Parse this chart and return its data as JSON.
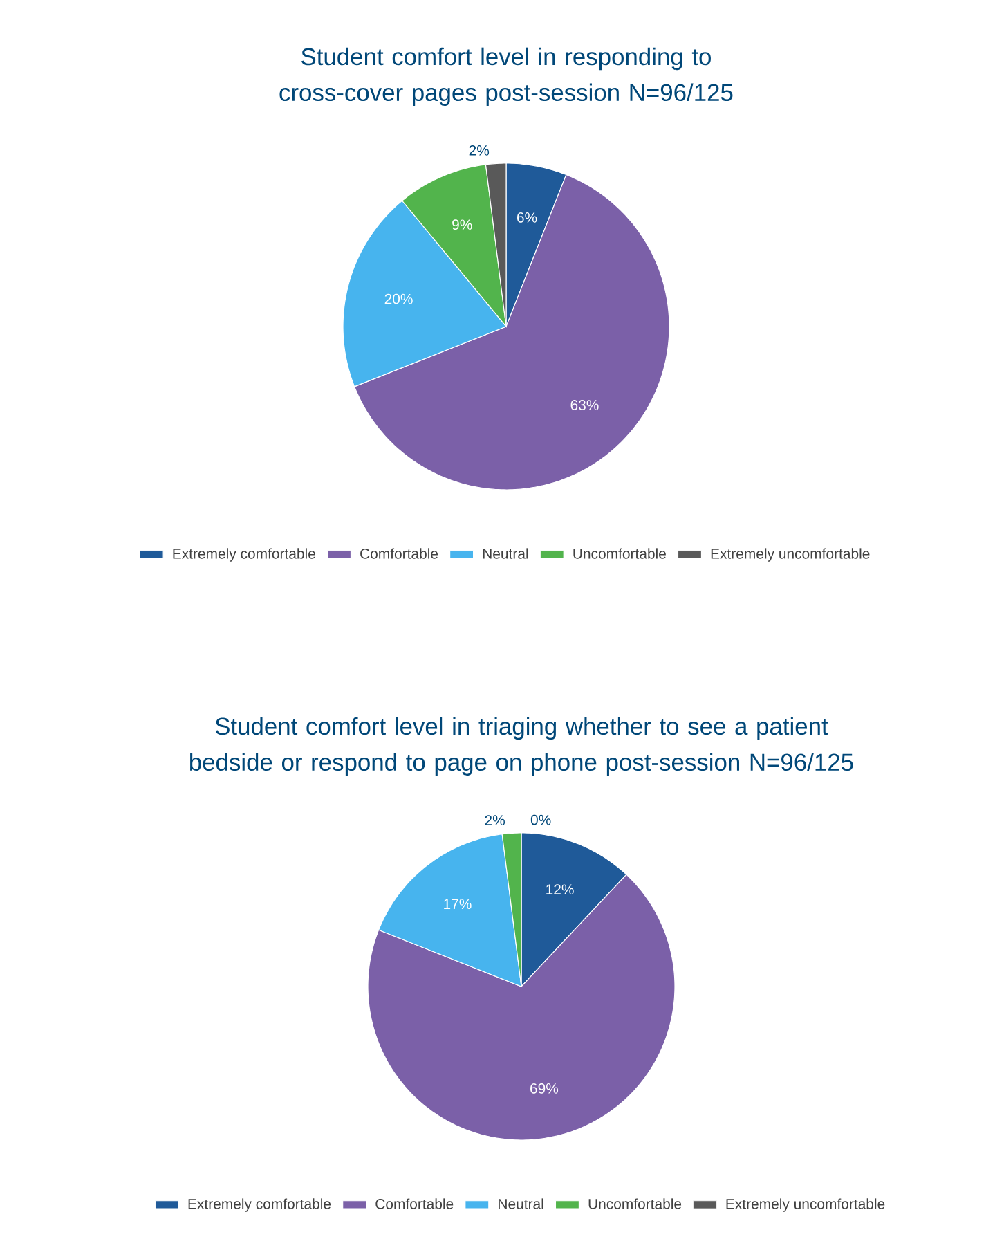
{
  "chart_data": [
    {
      "type": "pie",
      "title": "Student comfort level in responding to cross-cover pages post-session N=96/125",
      "categories": [
        "Extremely comfortable",
        "Comfortable",
        "Neutral",
        "Uncomfortable",
        "Extremely uncomfortable"
      ],
      "values": [
        6,
        63,
        20,
        9,
        2
      ],
      "colors": [
        "#1f5a99",
        "#7b60a8",
        "#47b4ee",
        "#52b44c",
        "#595959"
      ],
      "value_labels": [
        "6%",
        "63%",
        "20%",
        "9%",
        "2%"
      ],
      "legend": "bottom"
    },
    {
      "type": "pie",
      "title": "Student comfort level in triaging whether to see a patient bedside or respond to page on phone post-session N=96/125",
      "categories": [
        "Extremely comfortable",
        "Comfortable",
        "Neutral",
        "Uncomfortable",
        "Extremely uncomfortable"
      ],
      "values": [
        12,
        69,
        17,
        2,
        0
      ],
      "colors": [
        "#1f5a99",
        "#7b60a8",
        "#47b4ee",
        "#52b44c",
        "#595959"
      ],
      "value_labels": [
        "12%",
        "69%",
        "17%",
        "2%",
        "0%"
      ],
      "legend": "bottom"
    }
  ]
}
